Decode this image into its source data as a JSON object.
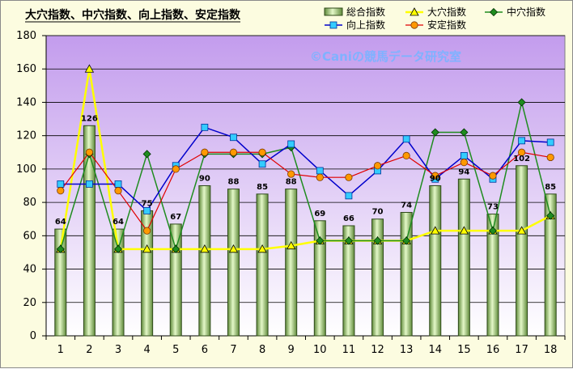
{
  "chart_data": {
    "type": "bar",
    "title": "大穴指数、中穴指数、向上指数、安定指数",
    "watermark": "©Caniの競馬データ研究室",
    "categories": [
      "1",
      "2",
      "3",
      "4",
      "5",
      "6",
      "7",
      "8",
      "9",
      "10",
      "11",
      "12",
      "13",
      "14",
      "15",
      "16",
      "17",
      "18"
    ],
    "ylim": [
      0,
      180
    ],
    "yticks": [
      0,
      20,
      40,
      60,
      80,
      100,
      120,
      140,
      160,
      180
    ],
    "grid": true,
    "legend_position": "top",
    "colors": {
      "plot_background": "#c9a2ef",
      "bar_fill": "#b6e08e",
      "bar_stroke": "#2f4a1a",
      "daiana": "#ffff00",
      "chuuana": "#1f8c1f",
      "koujou": "#0000cc",
      "koujou_marker": "#33ccff",
      "antei": "#e00000",
      "antei_marker": "#ff9900",
      "watermark": "#7fb2ff"
    },
    "series": [
      {
        "name": "総合指数",
        "kind": "bar",
        "values": [
          64,
          126,
          64,
          75,
          67,
          90,
          88,
          85,
          88,
          69,
          66,
          70,
          74,
          90,
          94,
          73,
          102,
          85
        ]
      },
      {
        "name": "大穴指数",
        "kind": "line",
        "values": [
          52,
          160,
          52,
          52,
          52,
          52,
          52,
          52,
          54,
          57,
          57,
          57,
          57,
          63,
          63,
          63,
          63,
          72
        ]
      },
      {
        "name": "中穴指数",
        "kind": "line",
        "values": [
          52,
          109,
          52,
          109,
          52,
          109,
          109,
          109,
          113,
          57,
          57,
          57,
          57,
          122,
          122,
          63,
          140,
          72
        ]
      },
      {
        "name": "向上指数",
        "kind": "line",
        "values": [
          91,
          91,
          91,
          75,
          102,
          125,
          119,
          103,
          115,
          99,
          84,
          99,
          118,
          94,
          108,
          94,
          117,
          116
        ]
      },
      {
        "name": "安定指数",
        "kind": "line",
        "values": [
          87,
          110,
          87,
          63,
          100,
          110,
          110,
          110,
          97,
          95,
          95,
          102,
          108,
          96,
          104,
          96,
          110,
          107
        ]
      }
    ],
    "data_labels": [
      "64",
      "126",
      "64",
      "75",
      "67",
      "90",
      "88",
      "85",
      "88",
      "69",
      "66",
      "70",
      "74",
      "90",
      "94",
      "73",
      "102",
      "85"
    ]
  }
}
